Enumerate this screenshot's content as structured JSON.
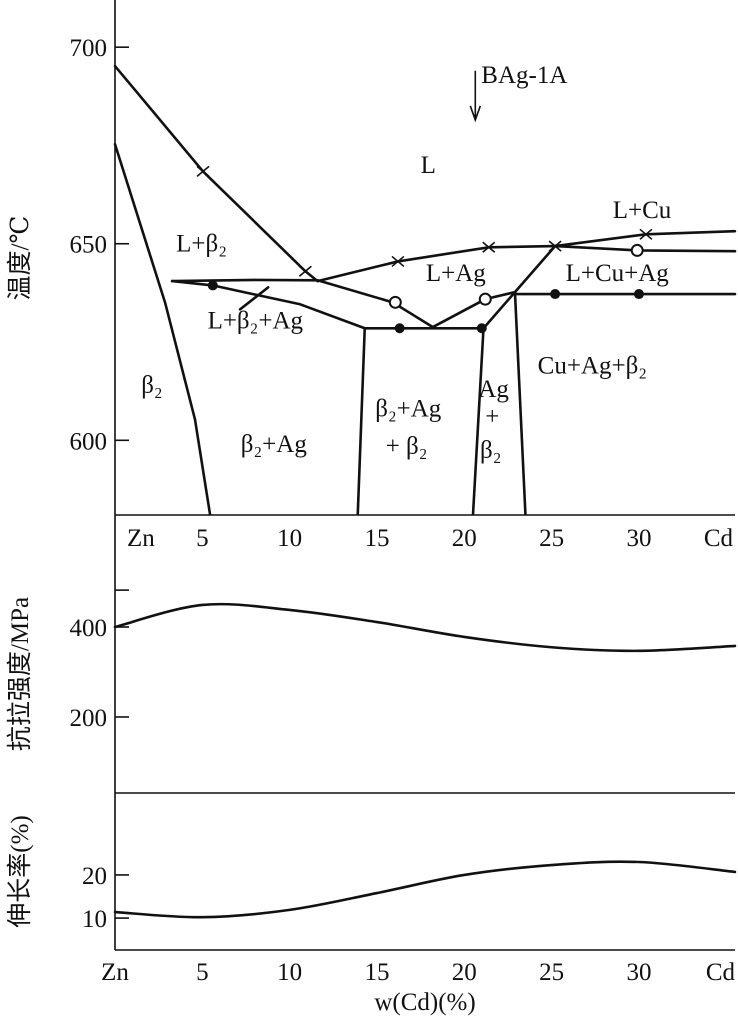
{
  "chart_data": [
    {
      "type": "line",
      "title": "",
      "xlabel": "w(Cd)(%)",
      "ylabel": "温度/℃",
      "xlim": [
        0,
        35.5
      ],
      "ylim": [
        581,
        712
      ],
      "xticks": [
        {
          "v": 0,
          "label": "Zn"
        },
        {
          "v": 5,
          "label": "5"
        },
        {
          "v": 10,
          "label": "10"
        },
        {
          "v": 15,
          "label": "15"
        },
        {
          "v": 20,
          "label": "20"
        },
        {
          "v": 25,
          "label": "25"
        },
        {
          "v": 30,
          "label": "30"
        },
        {
          "v": 35,
          "label": "Cd"
        }
      ],
      "yticks": [
        600,
        650,
        700
      ],
      "lines": [
        {
          "name": "liquidus-beta2",
          "points": [
            [
              0,
              695.2
            ],
            [
              5.04,
              668.4
            ],
            [
              10.9,
              643
            ],
            [
              11.6,
              640.5
            ]
          ]
        },
        {
          "name": "liquidus-ag",
          "points": [
            [
              11.6,
              640.5
            ],
            [
              16.2,
              645.5
            ],
            [
              21.4,
              649.1
            ],
            [
              25.2,
              649.4
            ]
          ]
        },
        {
          "name": "liquidus-cu",
          "points": [
            [
              25.2,
              649.4
            ],
            [
              30.4,
              652.4
            ],
            [
              35.5,
              653.2
            ]
          ]
        },
        {
          "name": "liquidus-cu-lower",
          "points": [
            [
              25.2,
              649.4
            ],
            [
              29.9,
              648.3
            ],
            [
              35.5,
              648.1
            ]
          ]
        },
        {
          "name": "beta2-solvus",
          "points": [
            [
              0,
              675.3
            ],
            [
              2.87,
              635
            ],
            [
              4.58,
              605.3
            ],
            [
              5.44,
              581.2
            ]
          ]
        },
        {
          "name": "l-b2-ag-upper",
          "points": [
            [
              3.27,
              640.5
            ],
            [
              8,
              640.8
            ],
            [
              11.6,
              640.7
            ],
            [
              15.9,
              635.1
            ],
            [
              18.2,
              628.8
            ]
          ]
        },
        {
          "name": "l-b2-ag-lower",
          "points": [
            [
              3.27,
              640.5
            ],
            [
              5.6,
              639.4
            ],
            [
              10.6,
              634.6
            ],
            [
              14.3,
              628.5
            ]
          ]
        },
        {
          "name": "eutectic-628",
          "points": [
            [
              14.3,
              628.5
            ],
            [
              21.1,
              628.5
            ]
          ]
        },
        {
          "name": "l-ag-right",
          "points": [
            [
              18.2,
              628.8
            ],
            [
              21.2,
              635.9
            ],
            [
              22.9,
              637.7
            ]
          ]
        },
        {
          "name": "ag-boundary",
          "points": [
            [
              21.1,
              628.5
            ],
            [
              22.9,
              637.7
            ],
            [
              25.2,
              649.4
            ]
          ]
        },
        {
          "name": "eutectic-637",
          "points": [
            [
              22.9,
              637.2
            ],
            [
              35.5,
              637.2
            ]
          ]
        },
        {
          "name": "b2ag-left",
          "points": [
            [
              14.3,
              628.5
            ],
            [
              13.9,
              581.2
            ]
          ]
        },
        {
          "name": "b2ag-right",
          "points": [
            [
              21.1,
              628.5
            ],
            [
              20.5,
              581.2
            ]
          ]
        },
        {
          "name": "ag-right",
          "points": [
            [
              22.9,
              637.7
            ],
            [
              23.5,
              581.2
            ]
          ]
        },
        {
          "name": "pointer",
          "points": [
            [
              7.16,
              633.3
            ],
            [
              8.77,
              638.9
            ]
          ]
        }
      ],
      "markers": [
        {
          "type": "x",
          "p": [
            5.04,
            668.4
          ]
        },
        {
          "type": "x",
          "p": [
            10.9,
            643
          ]
        },
        {
          "type": "x",
          "p": [
            16.2,
            645.5
          ]
        },
        {
          "type": "x",
          "p": [
            21.4,
            649.1
          ]
        },
        {
          "type": "x",
          "p": [
            25.2,
            649.4
          ]
        },
        {
          "type": "x",
          "p": [
            30.4,
            652.4
          ]
        },
        {
          "type": "o",
          "p": [
            16.05,
            635.1
          ]
        },
        {
          "type": "o",
          "p": [
            21.2,
            635.9
          ]
        },
        {
          "type": "o",
          "p": [
            29.9,
            648.3
          ]
        },
        {
          "type": "dot",
          "p": [
            5.6,
            639.4
          ]
        },
        {
          "type": "dot",
          "p": [
            16.3,
            628.5
          ]
        },
        {
          "type": "dot",
          "p": [
            21.0,
            628.5
          ]
        },
        {
          "type": "dot",
          "p": [
            25.2,
            637.2
          ]
        },
        {
          "type": "dot",
          "p": [
            30,
            637.2
          ]
        }
      ],
      "annotations": [
        {
          "text": "L",
          "p": [
            17.5,
            668
          ]
        },
        {
          "text": "L+Cu",
          "p": [
            28.5,
            656.5
          ]
        },
        {
          "text": "L+β₂",
          "p": [
            3.5,
            648
          ]
        },
        {
          "text": "L+Ag",
          "p": [
            17.8,
            640.5
          ]
        },
        {
          "text": "L+Cu+Ag",
          "p": [
            25.8,
            640.5
          ]
        },
        {
          "text": "L+β₂+Ag",
          "p": [
            5.3,
            628.5
          ]
        },
        {
          "text": "β₂",
          "p": [
            1.5,
            612
          ]
        },
        {
          "text": "Cu+Ag+β₂",
          "p": [
            24.2,
            617
          ]
        },
        {
          "text": "β₂+Ag",
          "p": [
            7.2,
            597
          ]
        },
        {
          "text": "β₂+Ag",
          "p": [
            14.9,
            606
          ]
        },
        {
          "text": "+ β₂",
          "p": [
            15.5,
            596.5
          ]
        },
        {
          "text": "Ag",
          "p": [
            20.8,
            611
          ]
        },
        {
          "text": "+",
          "p": [
            21.2,
            604
          ]
        },
        {
          "text": "β₂",
          "p": [
            20.9,
            595.5
          ]
        }
      ],
      "arrow": {
        "label": "BAg-1A",
        "x": 20.63,
        "from": 694,
        "to": 682
      }
    },
    {
      "type": "line",
      "ylabel": "抗拉强度/MPa",
      "xlim": [
        0,
        35.5
      ],
      "ylim": [
        31,
        649
      ],
      "yticks": [
        200,
        400
      ],
      "minor_ticks": [
        482
      ],
      "series": [
        {
          "name": "tensile strength",
          "x": [
            0,
            5,
            10,
            15,
            20,
            25,
            30,
            35.5
          ],
          "y": [
            400,
            449,
            438,
            411,
            378,
            355,
            347,
            358
          ]
        }
      ]
    },
    {
      "type": "line",
      "ylabel": "伸长率(%)",
      "xlabel": "w(Cd)(%)",
      "xlim": [
        0,
        35.5
      ],
      "ylim": [
        2.6,
        39
      ],
      "yticks": [
        10,
        20
      ],
      "xticks": [
        {
          "v": 0,
          "label": "Zn"
        },
        {
          "v": 5,
          "label": "5"
        },
        {
          "v": 10,
          "label": "10"
        },
        {
          "v": 15,
          "label": "15"
        },
        {
          "v": 20,
          "label": "20"
        },
        {
          "v": 25,
          "label": "25"
        },
        {
          "v": 30,
          "label": "30"
        },
        {
          "v": 35,
          "label": "Cd"
        }
      ],
      "series": [
        {
          "name": "elongation",
          "x": [
            0,
            5,
            10,
            15,
            20,
            25,
            30,
            35.5
          ],
          "y": [
            11.4,
            10.2,
            11.9,
            15.8,
            20,
            22.3,
            23,
            20.7
          ]
        }
      ]
    }
  ]
}
